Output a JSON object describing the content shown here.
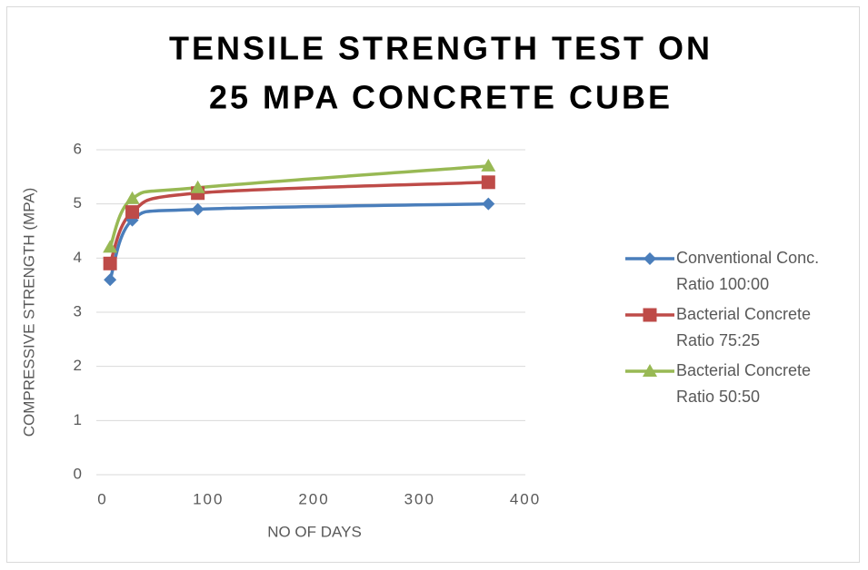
{
  "chart_data": {
    "type": "line",
    "title": [
      "TENSILE STRENGTH TEST ON",
      "25 MPA CONCRETE CUBE"
    ],
    "x_label": "NO OF DAYS",
    "y_label": "COMPRESSIVE STRENGTH (MPA)",
    "x": [
      7,
      28,
      90,
      365
    ],
    "series": [
      {
        "name": "Conventional Conc. Ratio 100:00",
        "color": "#4a7ebb",
        "marker": "diamond",
        "values": [
          3.6,
          4.7,
          4.9,
          5.0
        ]
      },
      {
        "name": "Bacterial Concrete Ratio 75:25",
        "color": "#be4b48",
        "marker": "square",
        "values": [
          3.9,
          4.85,
          5.2,
          5.4
        ]
      },
      {
        "name": "Bacterial Concrete Ratio 50:50",
        "color": "#98b954",
        "marker": "triangle",
        "values": [
          4.2,
          5.1,
          5.3,
          5.7
        ]
      }
    ],
    "xlim": [
      0,
      400
    ],
    "xticks": [
      0,
      100,
      200,
      300,
      400
    ],
    "ylim": [
      0,
      6
    ],
    "yticks": [
      0,
      1,
      2,
      3,
      4,
      5,
      6
    ],
    "grid": true,
    "legend": "right",
    "smooth": true
  }
}
